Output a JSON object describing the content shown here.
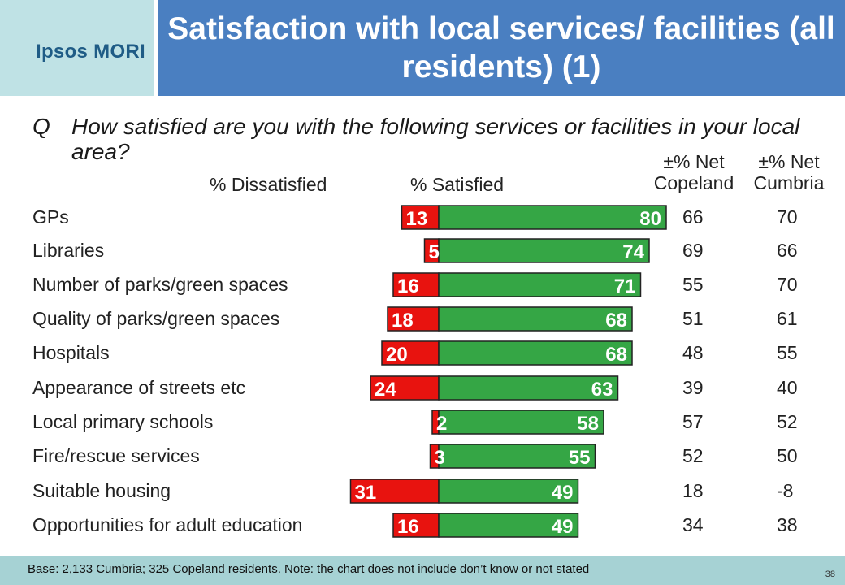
{
  "header": {
    "logo": "Ipsos MORI",
    "title": "Satisfaction with local services/ facilities (all residents) (1)"
  },
  "question": {
    "prefix": "Q",
    "text": "How satisfied are you with the following services or facilities in your local area?"
  },
  "columns": {
    "dissatisfied": "% Dissatisfied",
    "satisfied": "% Satisfied",
    "net_copeland": "±% Net Copeland",
    "net_cumbria": "±% Net Cumbria"
  },
  "colors": {
    "dissatisfied": "#e8130f",
    "satisfied": "#35a645",
    "title_bg": "#4a7fc1",
    "logo_bg": "#bfe2e5",
    "footer_bg": "#a6d2d4"
  },
  "chart_data": {
    "type": "bar",
    "orientation": "horizontal-diverging",
    "categories": [
      "GPs",
      "Libraries",
      "Number of parks/green spaces",
      "Quality of parks/green spaces",
      "Hospitals",
      "Appearance of streets etc",
      "Local primary schools",
      "Fire/rescue services",
      "Suitable housing",
      "Opportunities for adult education"
    ],
    "series": [
      {
        "name": "% Dissatisfied",
        "values": [
          13,
          5,
          16,
          18,
          20,
          24,
          2,
          3,
          31,
          16
        ]
      },
      {
        "name": "% Satisfied",
        "values": [
          80,
          74,
          71,
          68,
          68,
          63,
          58,
          55,
          49,
          49
        ]
      }
    ],
    "net_copeland": [
      "66",
      "69",
      "55",
      "51",
      "48",
      "39",
      "57",
      "52",
      "18",
      "34"
    ],
    "net_cumbria": [
      "70",
      "66",
      "70",
      "61",
      "55",
      "40",
      "52",
      "50",
      "-8",
      "38"
    ]
  },
  "footer": {
    "note": "Base: 2,133 Cumbria; 325 Copeland residents. Note: the chart does not include don’t know or not stated",
    "page": "38"
  }
}
